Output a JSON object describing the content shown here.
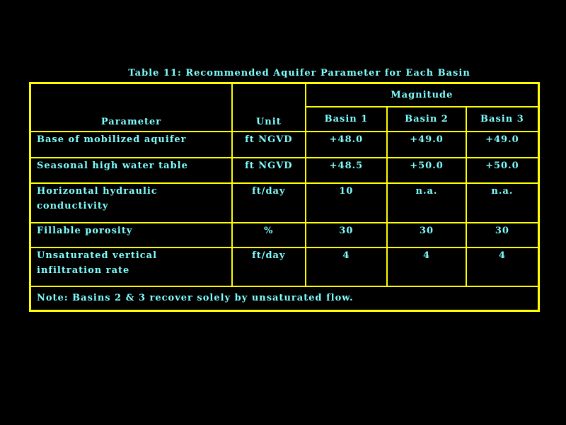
{
  "title": "Table 11: Recommended Aquifer Parameter for Each Basin",
  "table": {
    "header": {
      "parameter": "Parameter",
      "unit": "Unit",
      "magnitude": "Magnitude",
      "basins": [
        "Basin 1",
        "Basin 2",
        "Basin 3"
      ]
    },
    "rows": [
      [
        "Base of mobilized aquifer",
        "ft NGVD",
        "+48.0",
        "+49.0",
        "+49.0"
      ],
      [
        "Seasonal high water table",
        "ft NGVD",
        "+48.5",
        "+50.0",
        "+50.0"
      ],
      [
        "Horizontal hydraulic\nconductivity",
        "ft/day",
        "10",
        "n.a.",
        "n.a."
      ],
      [
        "Fillable porosity",
        "%",
        "30",
        "30",
        "30"
      ],
      [
        "Unsaturated vertical\ninfiltration rate",
        "ft/day",
        "4",
        "4",
        "4"
      ]
    ],
    "note": "Note: Basins 2 & 3 recover solely by unsaturated flow."
  }
}
